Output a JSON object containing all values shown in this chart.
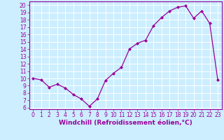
{
  "x": [
    0,
    1,
    2,
    3,
    4,
    5,
    6,
    7,
    8,
    9,
    10,
    11,
    12,
    13,
    14,
    15,
    16,
    17,
    18,
    19,
    20,
    21,
    22,
    23
  ],
  "y": [
    10.0,
    9.8,
    8.8,
    9.2,
    8.7,
    7.8,
    7.2,
    6.2,
    7.2,
    9.7,
    10.7,
    11.5,
    14.0,
    14.8,
    15.2,
    17.2,
    18.3,
    19.2,
    19.7,
    19.9,
    18.2,
    19.2,
    17.5,
    9.8
  ],
  "xlabel": "Windchill (Refroidissement éolien,°C)",
  "line_color": "#990099",
  "marker": "D",
  "marker_size": 2.0,
  "bg_color": "#cceeff",
  "grid_color": "#ffffff",
  "xlim": [
    -0.5,
    23.5
  ],
  "ylim": [
    5.8,
    20.5
  ],
  "yticks": [
    6,
    7,
    8,
    9,
    10,
    11,
    12,
    13,
    14,
    15,
    16,
    17,
    18,
    19,
    20
  ],
  "xticks": [
    0,
    1,
    2,
    3,
    4,
    5,
    6,
    7,
    8,
    9,
    10,
    11,
    12,
    13,
    14,
    15,
    16,
    17,
    18,
    19,
    20,
    21,
    22,
    23
  ],
  "tick_fontsize": 5.5,
  "xlabel_fontsize": 6.5,
  "tick_color": "#990099",
  "spine_color": "#990099",
  "line_width": 0.9
}
